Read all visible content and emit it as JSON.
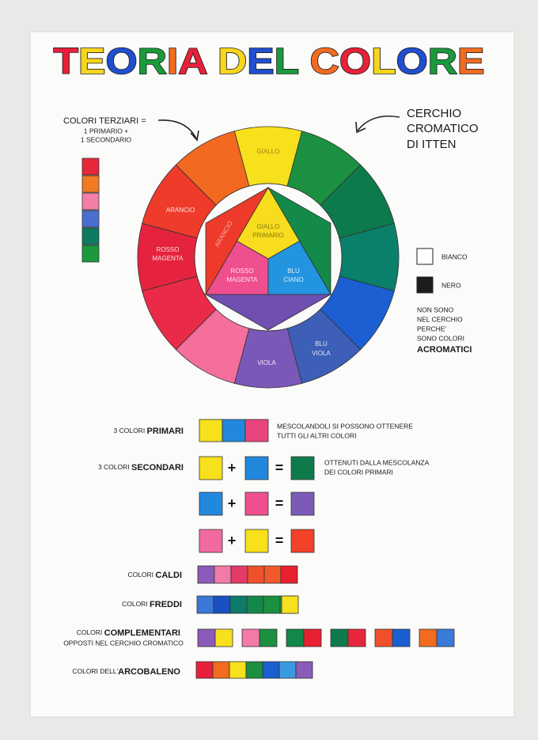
{
  "title": "TEORIA DEL COLORE",
  "tertiary_note": [
    "COLORI TERZIARI =",
    "1 PRIMARIO +",
    "1 SECONDARIO"
  ],
  "wheel_title": [
    "CERCHIO",
    "CROMATICO",
    "DI ITTEN"
  ],
  "outer_labels": {
    "yellow": [
      "GIALLO"
    ],
    "orange": [
      "ARANCIO"
    ],
    "red": [
      "ROSSO",
      "MAGENTA"
    ],
    "violet": [
      "VIOLA"
    ],
    "blue_violet": [
      "BLU",
      "VIOLA"
    ]
  },
  "inner_labels": {
    "yellow": [
      "GIALLO",
      "PRIMARIO"
    ],
    "pink": [
      "ROSSO",
      "MAGENTA"
    ],
    "blue": [
      "BLU",
      "CIANO"
    ],
    "orange": [
      "ARANCIO"
    ]
  },
  "achromatic": {
    "white": "BIANCO",
    "black": "NERO",
    "note": [
      "NON SONO",
      "NEL CERCHIO",
      "PERCHE'",
      "SONO COLORI"
    ],
    "emphasis": "ACROMATICI"
  },
  "rows": {
    "primary": {
      "prefix": "3 COLORI ",
      "label": "PRIMARI",
      "note": [
        "MESCOLANDOLI SI POSSONO OTTENERE",
        "TUTTI GLI ALTRI COLORI"
      ]
    },
    "secondary": {
      "prefix": "3 COLORI ",
      "label": "SECONDARI",
      "note": [
        "OTTENUTI DALLA MESCOLANZA",
        "DEI COLORI PRIMARI"
      ]
    },
    "warm": {
      "prefix": "COLORI ",
      "label": "CALDI"
    },
    "cold": {
      "prefix": "COLORI ",
      "label": "FREDDI"
    },
    "complementary": {
      "prefix": "COLORI ",
      "label": "COMPLEMENTARI",
      "note": "OPPOSTI NEL CERCHIO CROMATICO"
    },
    "rainbow": {
      "prefix": "COLORI DELL'",
      "label": "ARCOBALENO"
    }
  },
  "plus": "+",
  "equals": "="
}
